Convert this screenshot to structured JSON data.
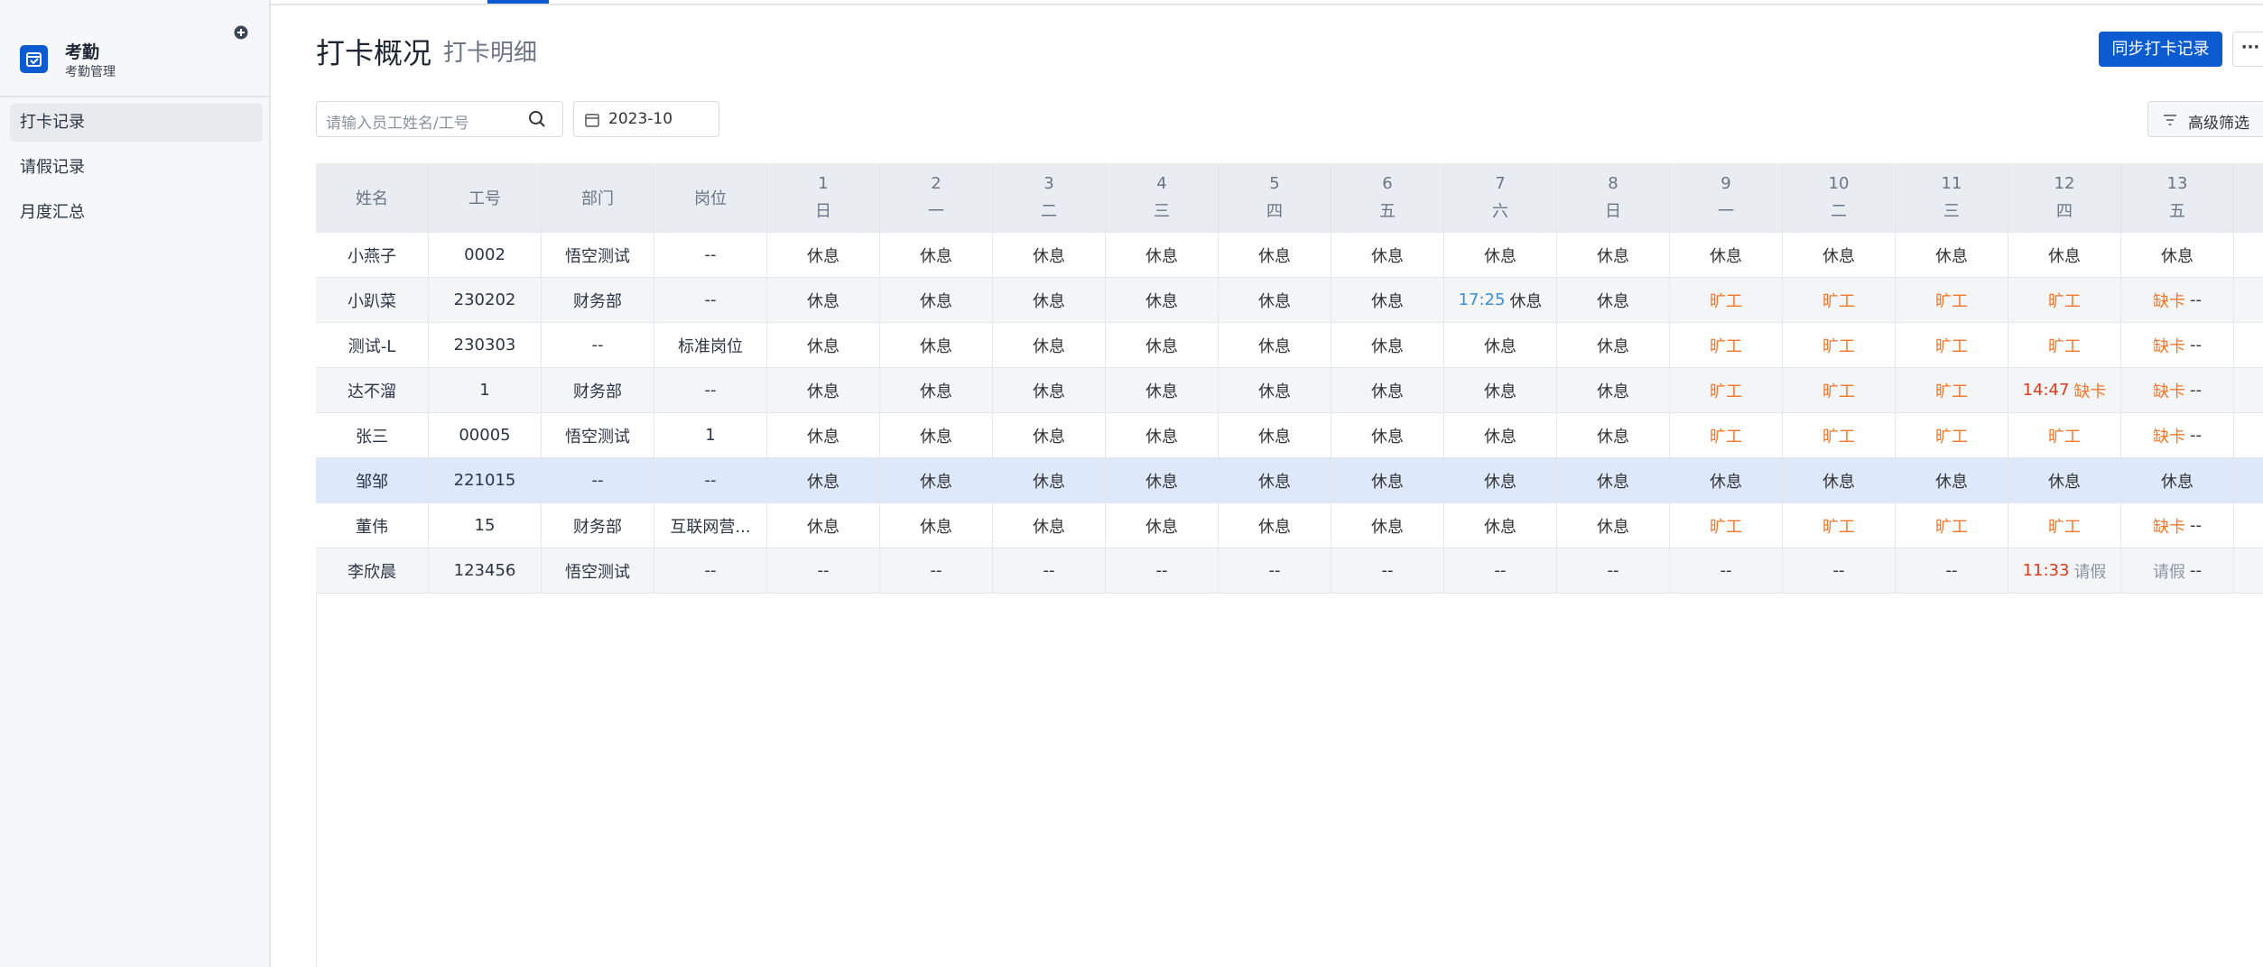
{
  "app": {
    "title": "考勤",
    "subtitle": "考勤管理"
  },
  "nav": [
    {
      "label": "打卡记录",
      "active": true
    },
    {
      "label": "请假记录"
    },
    {
      "label": "月度汇总"
    }
  ],
  "tabs": [
    {
      "label": "打卡概况",
      "active": true
    },
    {
      "label": "打卡明细"
    }
  ],
  "actions": {
    "sync": "同步打卡记录"
  },
  "filters": {
    "search_placeholder": "请输入员工姓名/工号",
    "month": "2023-10",
    "advanced": "高级筛选"
  },
  "table": {
    "columns": [
      "姓名",
      "工号",
      "部门",
      "岗位"
    ],
    "days": [
      {
        "day": 1,
        "weekday": "日"
      },
      {
        "day": 2,
        "weekday": "一"
      },
      {
        "day": 3,
        "weekday": "二"
      },
      {
        "day": 4,
        "weekday": "三"
      },
      {
        "day": 5,
        "weekday": "四"
      },
      {
        "day": 6,
        "weekday": "五"
      },
      {
        "day": 7,
        "weekday": "六"
      },
      {
        "day": 8,
        "weekday": "日"
      },
      {
        "day": 9,
        "weekday": "一"
      },
      {
        "day": 10,
        "weekday": "二"
      },
      {
        "day": 11,
        "weekday": "三"
      },
      {
        "day": 12,
        "weekday": "四"
      },
      {
        "day": 13,
        "weekday": "五"
      }
    ],
    "rows": [
      {
        "name": "小燕子",
        "id": "0002",
        "dept": "悟空测试",
        "post": "--",
        "days": [
          [
            "休息"
          ],
          [
            "休息"
          ],
          [
            "休息"
          ],
          [
            "休息"
          ],
          [
            "休息"
          ],
          [
            "休息"
          ],
          [
            "休息"
          ],
          [
            "休息"
          ],
          [
            "休息"
          ],
          [
            "休息"
          ],
          [
            "休息"
          ],
          [
            "休息"
          ],
          [
            "休息"
          ]
        ]
      },
      {
        "name": "小趴菜",
        "id": "230202",
        "dept": "财务部",
        "post": "--",
        "days": [
          [
            "休息"
          ],
          [
            "休息"
          ],
          [
            "休息"
          ],
          [
            "休息"
          ],
          [
            "休息"
          ],
          [
            "休息"
          ],
          [
            {
              "text": "17:25",
              "color": "#3c8fd6"
            },
            "休息"
          ],
          [
            "休息"
          ],
          [
            {
              "text": "旷工",
              "color": "#f5772a"
            }
          ],
          [
            {
              "text": "旷工",
              "color": "#f5772a"
            }
          ],
          [
            {
              "text": "旷工",
              "color": "#f5772a"
            }
          ],
          [
            {
              "text": "旷工",
              "color": "#f5772a"
            }
          ],
          [
            {
              "text": "缺卡",
              "color": "#f5772a"
            },
            "--"
          ]
        ]
      },
      {
        "name": "测试-L",
        "id": "230303",
        "dept": "--",
        "post": "标准岗位",
        "days": [
          [
            "休息"
          ],
          [
            "休息"
          ],
          [
            "休息"
          ],
          [
            "休息"
          ],
          [
            "休息"
          ],
          [
            "休息"
          ],
          [
            "休息"
          ],
          [
            "休息"
          ],
          [
            {
              "text": "旷工",
              "color": "#f5772a"
            }
          ],
          [
            {
              "text": "旷工",
              "color": "#f5772a"
            }
          ],
          [
            {
              "text": "旷工",
              "color": "#f5772a"
            }
          ],
          [
            {
              "text": "旷工",
              "color": "#f5772a"
            }
          ],
          [
            {
              "text": "缺卡",
              "color": "#f5772a"
            },
            "--"
          ]
        ]
      },
      {
        "name": "达不溜",
        "id": "1",
        "dept": "财务部",
        "post": "--",
        "days": [
          [
            "休息"
          ],
          [
            "休息"
          ],
          [
            "休息"
          ],
          [
            "休息"
          ],
          [
            "休息"
          ],
          [
            "休息"
          ],
          [
            "休息"
          ],
          [
            "休息"
          ],
          [
            {
              "text": "旷工",
              "color": "#f5772a"
            }
          ],
          [
            {
              "text": "旷工",
              "color": "#f5772a"
            }
          ],
          [
            {
              "text": "旷工",
              "color": "#f5772a"
            }
          ],
          [
            {
              "text": "14:47",
              "color": "#e03a1e"
            },
            {
              "text": "缺卡",
              "color": "#f5772a"
            }
          ],
          [
            {
              "text": "缺卡",
              "color": "#f5772a"
            },
            "--"
          ]
        ]
      },
      {
        "name": "张三",
        "id": "00005",
        "dept": "悟空测试",
        "post": "1",
        "days": [
          [
            "休息"
          ],
          [
            "休息"
          ],
          [
            "休息"
          ],
          [
            "休息"
          ],
          [
            "休息"
          ],
          [
            "休息"
          ],
          [
            "休息"
          ],
          [
            "休息"
          ],
          [
            {
              "text": "旷工",
              "color": "#f5772a"
            }
          ],
          [
            {
              "text": "旷工",
              "color": "#f5772a"
            }
          ],
          [
            {
              "text": "旷工",
              "color": "#f5772a"
            }
          ],
          [
            {
              "text": "旷工",
              "color": "#f5772a"
            }
          ],
          [
            {
              "text": "缺卡",
              "color": "#f5772a"
            },
            "--"
          ]
        ]
      },
      {
        "name": "邹邹",
        "id": "221015",
        "dept": "--",
        "post": "--",
        "highlight": true,
        "days": [
          [
            "休息"
          ],
          [
            "休息"
          ],
          [
            "休息"
          ],
          [
            "休息"
          ],
          [
            "休息"
          ],
          [
            "休息"
          ],
          [
            "休息"
          ],
          [
            "休息"
          ],
          [
            "休息"
          ],
          [
            "休息"
          ],
          [
            "休息"
          ],
          [
            "休息"
          ],
          [
            "休息"
          ]
        ]
      },
      {
        "name": "董伟",
        "id": "15",
        "dept": "财务部",
        "post": "互联网营...",
        "days": [
          [
            "休息"
          ],
          [
            "休息"
          ],
          [
            "休息"
          ],
          [
            "休息"
          ],
          [
            "休息"
          ],
          [
            "休息"
          ],
          [
            "休息"
          ],
          [
            "休息"
          ],
          [
            {
              "text": "旷工",
              "color": "#f5772a"
            }
          ],
          [
            {
              "text": "旷工",
              "color": "#f5772a"
            }
          ],
          [
            {
              "text": "旷工",
              "color": "#f5772a"
            }
          ],
          [
            {
              "text": "旷工",
              "color": "#f5772a"
            }
          ],
          [
            {
              "text": "缺卡",
              "color": "#f5772a"
            },
            "--"
          ]
        ]
      },
      {
        "name": "李欣晨",
        "id": "123456",
        "dept": "悟空测试",
        "post": "--",
        "days": [
          [
            "--"
          ],
          [
            "--"
          ],
          [
            "--"
          ],
          [
            "--"
          ],
          [
            "--"
          ],
          [
            "--"
          ],
          [
            "--"
          ],
          [
            "--"
          ],
          [
            "--"
          ],
          [
            "--"
          ],
          [
            "--"
          ],
          [
            {
              "text": "11:33",
              "color": "#e03a1e"
            },
            {
              "text": "请假",
              "color": "#8a96a8"
            }
          ],
          [
            {
              "text": "请假",
              "color": "#8a96a8"
            },
            "--"
          ]
        ]
      }
    ]
  }
}
